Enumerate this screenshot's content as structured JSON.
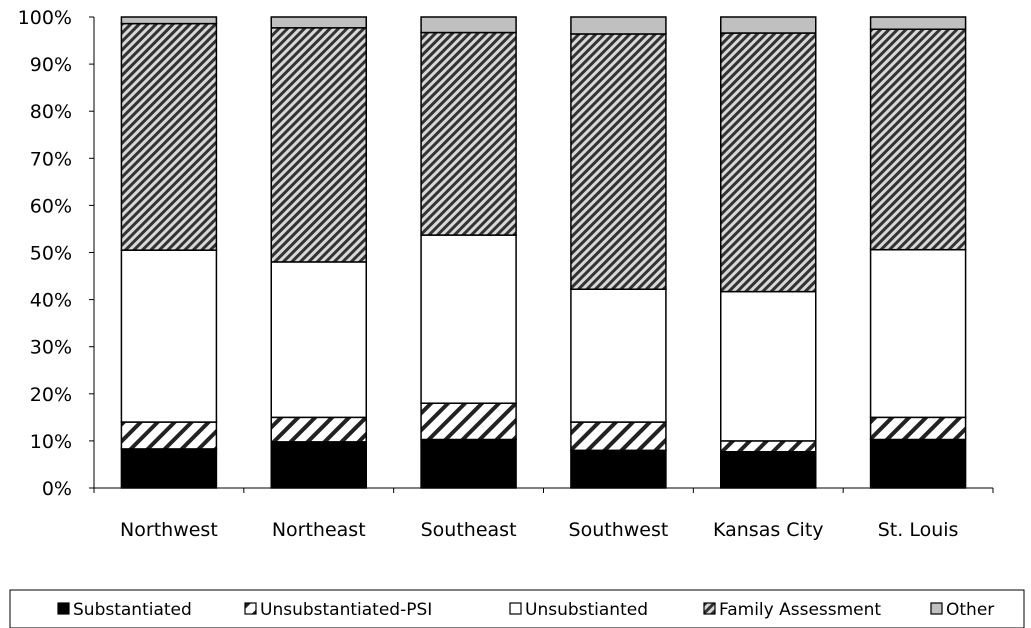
{
  "chart_data": {
    "type": "bar",
    "stacked": true,
    "normalized": true,
    "categories": [
      "Northwest",
      "Northeast",
      "Southeast",
      "Southwest",
      "Kansas City",
      "St. Louis"
    ],
    "series": [
      {
        "name": "Substantiated",
        "values": [
          8.3,
          9.8,
          10.3,
          8.0,
          7.7,
          10.3
        ],
        "fill": "black"
      },
      {
        "name": "Unsubstantiated-PSI",
        "values": [
          5.7,
          5.2,
          7.7,
          6.0,
          2.3,
          4.7
        ],
        "fill": "diag-sparse"
      },
      {
        "name": "Unsubstianted",
        "values": [
          36.5,
          33.0,
          35.7,
          28.2,
          31.7,
          35.6
        ],
        "fill": "white"
      },
      {
        "name": "Family Assessment",
        "values": [
          48.1,
          49.7,
          43.0,
          54.2,
          54.9,
          46.8
        ],
        "fill": "diag-dense"
      },
      {
        "name": "Other",
        "values": [
          1.4,
          2.3,
          3.3,
          3.6,
          3.4,
          2.6
        ],
        "fill": "#c0c0c0"
      }
    ],
    "ylim": [
      0,
      100
    ],
    "yticks": [
      "0%",
      "10%",
      "20%",
      "30%",
      "40%",
      "50%",
      "60%",
      "70%",
      "80%",
      "90%",
      "100%"
    ],
    "title": "",
    "xlabel": "",
    "ylabel": "",
    "grid": false,
    "legend_position": "bottom"
  }
}
